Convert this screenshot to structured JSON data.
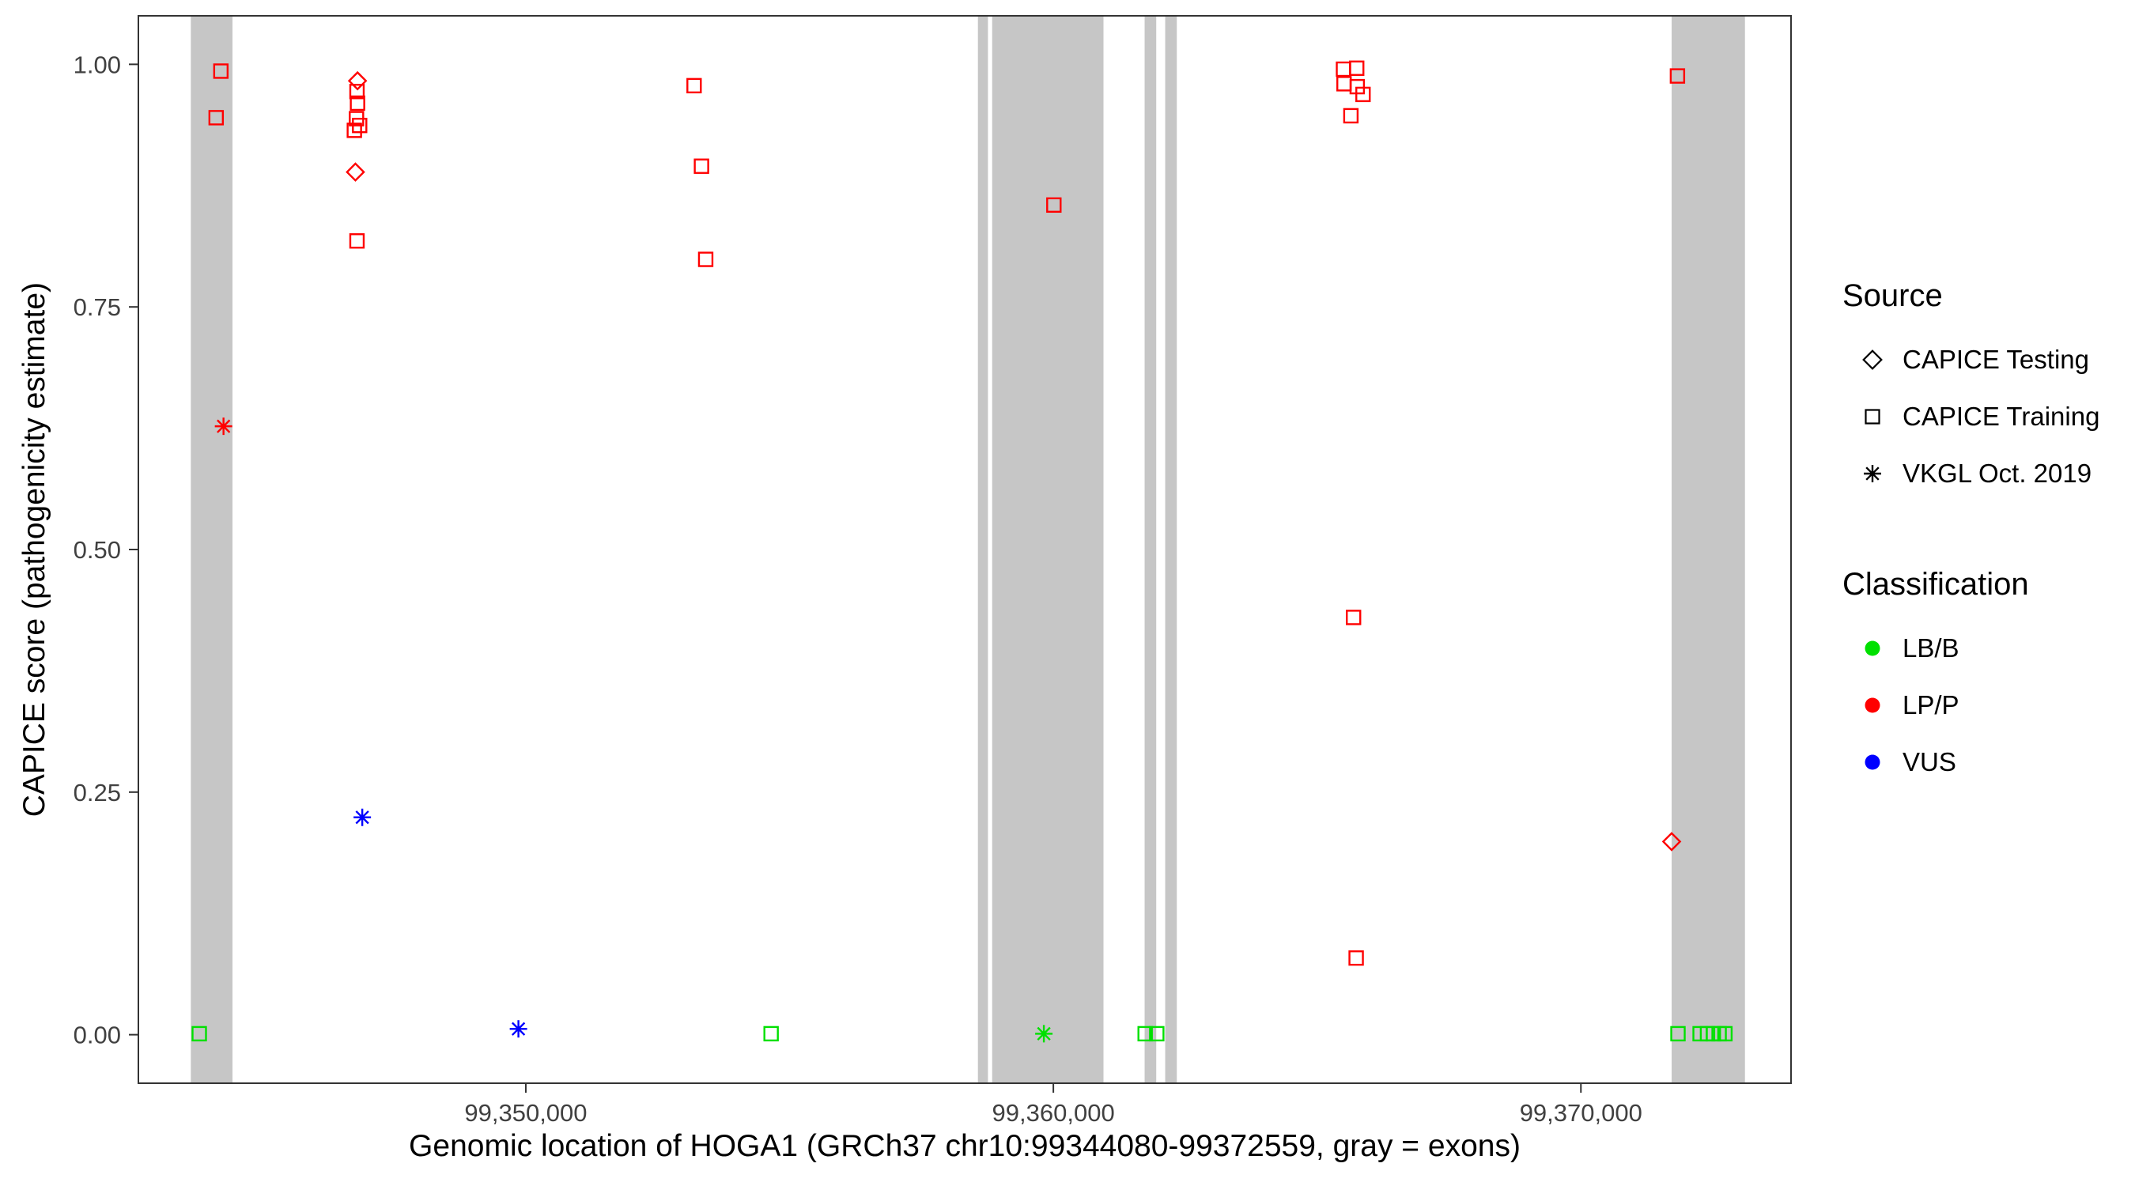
{
  "chart_data": {
    "type": "scatter",
    "title": "",
    "xlabel": "Genomic location of HOGA1 (GRCh37 chr10:99344080-99372559, gray = exons)",
    "ylabel": "CAPICE score (pathogenicity estimate)",
    "xlim": [
      99342656,
      99373983
    ],
    "ylim": [
      -0.05,
      1.05
    ],
    "grid": "off",
    "legend_position": "right",
    "x_ticks": [
      {
        "value": 99350000,
        "label": "99,350,000"
      },
      {
        "value": 99360000,
        "label": "99,360,000"
      },
      {
        "value": 99370000,
        "label": "99,370,000"
      }
    ],
    "y_ticks": [
      {
        "value": 0.0,
        "label": "0.00"
      },
      {
        "value": 0.25,
        "label": "0.25"
      },
      {
        "value": 0.5,
        "label": "0.50"
      },
      {
        "value": 0.75,
        "label": "0.75"
      },
      {
        "value": 1.0,
        "label": "1.00"
      }
    ],
    "exon_color": "#c6c6c6",
    "exons": [
      [
        99343650,
        99344440
      ],
      [
        99358570,
        99358760
      ],
      [
        99358840,
        99360950
      ],
      [
        99361730,
        99361950
      ],
      [
        99362120,
        99362340
      ],
      [
        99371720,
        99373110
      ]
    ],
    "colors": {
      "LB/B": "#00e000",
      "LP/P": "#ff0000",
      "VUS": "#0000ff"
    },
    "marker_by_source": {
      "CAPICE Testing": "diamond",
      "CAPICE Training": "square",
      "VKGL Oct. 2019": "asterisk"
    },
    "points": [
      {
        "x": 99344220,
        "y": 0.993,
        "source": "CAPICE Training",
        "classification": "LP/P"
      },
      {
        "x": 99344130,
        "y": 0.945,
        "source": "CAPICE Training",
        "classification": "LP/P"
      },
      {
        "x": 99346800,
        "y": 0.972,
        "source": "CAPICE Training",
        "classification": "LP/P"
      },
      {
        "x": 99346810,
        "y": 0.96,
        "source": "CAPICE Training",
        "classification": "LP/P"
      },
      {
        "x": 99346790,
        "y": 0.944,
        "source": "CAPICE Training",
        "classification": "LP/P"
      },
      {
        "x": 99346850,
        "y": 0.937,
        "source": "CAPICE Training",
        "classification": "LP/P"
      },
      {
        "x": 99346750,
        "y": 0.932,
        "source": "CAPICE Training",
        "classification": "LP/P"
      },
      {
        "x": 99346800,
        "y": 0.818,
        "source": "CAPICE Training",
        "classification": "LP/P"
      },
      {
        "x": 99353190,
        "y": 0.978,
        "source": "CAPICE Training",
        "classification": "LP/P"
      },
      {
        "x": 99353330,
        "y": 0.895,
        "source": "CAPICE Training",
        "classification": "LP/P"
      },
      {
        "x": 99353410,
        "y": 0.799,
        "source": "CAPICE Training",
        "classification": "LP/P"
      },
      {
        "x": 99360010,
        "y": 0.855,
        "source": "CAPICE Training",
        "classification": "LP/P"
      },
      {
        "x": 99365500,
        "y": 0.995,
        "source": "CAPICE Training",
        "classification": "LP/P"
      },
      {
        "x": 99365750,
        "y": 0.996,
        "source": "CAPICE Training",
        "classification": "LP/P"
      },
      {
        "x": 99365510,
        "y": 0.98,
        "source": "CAPICE Training",
        "classification": "LP/P"
      },
      {
        "x": 99365760,
        "y": 0.977,
        "source": "CAPICE Training",
        "classification": "LP/P"
      },
      {
        "x": 99365870,
        "y": 0.969,
        "source": "CAPICE Training",
        "classification": "LP/P"
      },
      {
        "x": 99365640,
        "y": 0.947,
        "source": "CAPICE Training",
        "classification": "LP/P"
      },
      {
        "x": 99365690,
        "y": 0.43,
        "source": "CAPICE Training",
        "classification": "LP/P"
      },
      {
        "x": 99365740,
        "y": 0.079,
        "source": "CAPICE Training",
        "classification": "LP/P"
      },
      {
        "x": 99371830,
        "y": 0.988,
        "source": "CAPICE Training",
        "classification": "LP/P"
      },
      {
        "x": 99346810,
        "y": 0.983,
        "source": "CAPICE Testing",
        "classification": "LP/P"
      },
      {
        "x": 99346770,
        "y": 0.889,
        "source": "CAPICE Testing",
        "classification": "LP/P"
      },
      {
        "x": 99371720,
        "y": 0.199,
        "source": "CAPICE Testing",
        "classification": "LP/P"
      },
      {
        "x": 99344270,
        "y": 0.627,
        "source": "VKGL Oct. 2019",
        "classification": "LP/P"
      },
      {
        "x": 99346900,
        "y": 0.224,
        "source": "VKGL Oct. 2019",
        "classification": "VUS"
      },
      {
        "x": 99349860,
        "y": 0.006,
        "source": "VKGL Oct. 2019",
        "classification": "VUS"
      },
      {
        "x": 99359820,
        "y": 0.001,
        "source": "VKGL Oct. 2019",
        "classification": "LB/B"
      },
      {
        "x": 99343810,
        "y": 0.001,
        "source": "CAPICE Training",
        "classification": "LB/B"
      },
      {
        "x": 99354650,
        "y": 0.001,
        "source": "CAPICE Training",
        "classification": "LB/B"
      },
      {
        "x": 99361740,
        "y": 0.001,
        "source": "CAPICE Training",
        "classification": "LB/B"
      },
      {
        "x": 99361960,
        "y": 0.001,
        "source": "CAPICE Training",
        "classification": "LB/B"
      },
      {
        "x": 99371840,
        "y": 0.001,
        "source": "CAPICE Training",
        "classification": "LB/B"
      },
      {
        "x": 99372260,
        "y": 0.001,
        "source": "CAPICE Training",
        "classification": "LB/B"
      },
      {
        "x": 99372400,
        "y": 0.001,
        "source": "CAPICE Training",
        "classification": "LB/B"
      },
      {
        "x": 99372510,
        "y": 0.001,
        "source": "CAPICE Training",
        "classification": "LB/B"
      },
      {
        "x": 99372620,
        "y": 0.001,
        "source": "CAPICE Training",
        "classification": "LB/B"
      },
      {
        "x": 99372730,
        "y": 0.001,
        "source": "CAPICE Training",
        "classification": "LB/B"
      }
    ]
  },
  "legend": {
    "source": {
      "title": "Source",
      "items": [
        {
          "label": "CAPICE Testing",
          "marker": "diamond"
        },
        {
          "label": "CAPICE Training",
          "marker": "square"
        },
        {
          "label": "VKGL Oct. 2019",
          "marker": "asterisk"
        }
      ]
    },
    "classification": {
      "title": "Classification",
      "items": [
        {
          "label": "LB/B",
          "color": "#00e000"
        },
        {
          "label": "LP/P",
          "color": "#ff0000"
        },
        {
          "label": "VUS",
          "color": "#0000ff"
        }
      ]
    }
  }
}
